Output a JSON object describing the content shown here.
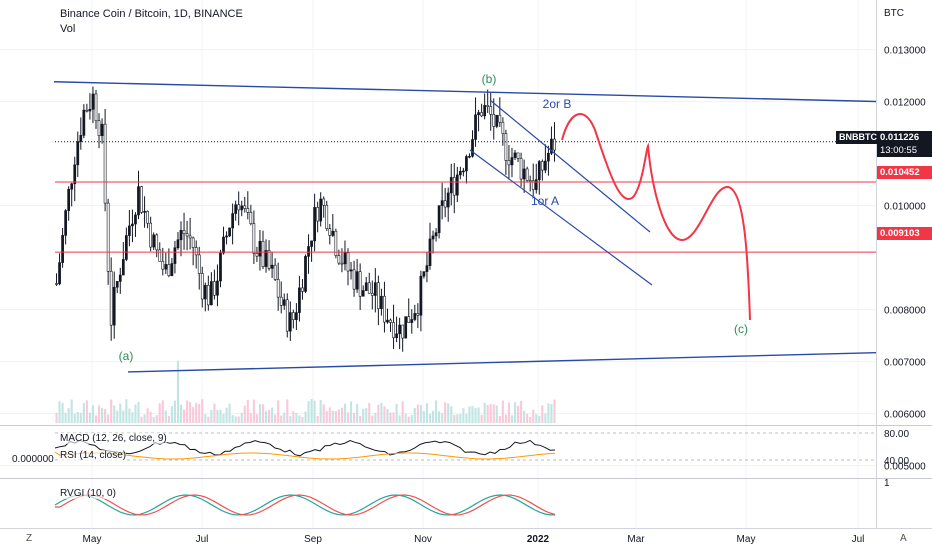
{
  "header": {
    "title": "Binance Coin / Bitcoin, 1D, BINANCE",
    "volume_label": "Vol"
  },
  "price_axis": {
    "currency_label": "BTC",
    "ticks": [
      "0.013000",
      "0.012000",
      "0.010000",
      "0.008000",
      "0.007000",
      "0.006000",
      "0.005000"
    ]
  },
  "current_price": {
    "symbol": "BNBBTC",
    "value": "0.011226",
    "countdown": "13:00:55",
    "color": "#131722"
  },
  "horizontal_levels": [
    {
      "value": "0.010452",
      "color": "#f23645"
    },
    {
      "value": "0.009103",
      "color": "#f23645"
    }
  ],
  "annotations": {
    "wave_a": "(a)",
    "wave_b": "(b)",
    "wave_c": "(c)",
    "one_or_a": "1or A",
    "two_or_b": "2or B"
  },
  "indicators": {
    "macd_label": "MACD (12, 26, close, 9)",
    "macd_value": "0.000000",
    "rsi_label": "RSI (14, close)",
    "rsi_ticks": [
      "80.00",
      "40.00"
    ],
    "rvgi_label": "RVGI (10, 0)",
    "rvgi_tick": "1"
  },
  "time_axis": {
    "labels": [
      "May",
      "Jul",
      "Sep",
      "Nov",
      "2022",
      "Mar",
      "May",
      "Jul"
    ]
  },
  "corners": {
    "zoom": "Z",
    "auto": "A"
  },
  "colors": {
    "trendline": "#2a4aa8",
    "level_line": "#f23645",
    "projection": "#f23645",
    "wave_text": "#2e8b57",
    "candle_up": "#131722",
    "candle_down": "#ffffff"
  },
  "chart_data": {
    "type": "candlestick",
    "title": "Binance Coin / Bitcoin, 1D, BINANCE",
    "y_axis_ticks": [
      0.013,
      0.012,
      0.01,
      0.008,
      0.007,
      0.006,
      0.005
    ],
    "x_axis_ticks": [
      "May",
      "Jul",
      "Sep",
      "Nov",
      "2022",
      "Mar",
      "May",
      "Jul"
    ],
    "last_price": 0.011226,
    "levels": [
      0.010452,
      0.009103
    ],
    "approx_close_series": [
      0.0085,
      0.0098,
      0.011,
      0.0118,
      0.0121,
      0.0114,
      0.0078,
      0.0088,
      0.0096,
      0.0103,
      0.0097,
      0.0091,
      0.0087,
      0.0092,
      0.0095,
      0.0093,
      0.0085,
      0.0082,
      0.0088,
      0.0096,
      0.0102,
      0.0097,
      0.0092,
      0.0089,
      0.0086,
      0.008,
      0.0077,
      0.0085,
      0.0094,
      0.0101,
      0.0098,
      0.0092,
      0.0088,
      0.0086,
      0.0084,
      0.0083,
      0.008,
      0.0078,
      0.0076,
      0.0079,
      0.0082,
      0.0089,
      0.0096,
      0.0101,
      0.0105,
      0.0109,
      0.0114,
      0.0119,
      0.0117,
      0.0113,
      0.011,
      0.0108,
      0.0106,
      0.0104,
      0.0109,
      0.0112
    ],
    "trendlines": [
      {
        "name": "upper channel",
        "from": 0.01238,
        "to": 0.012
      },
      {
        "name": "lower channel",
        "from": 0.0068,
        "to": 0.00717
      }
    ]
  }
}
